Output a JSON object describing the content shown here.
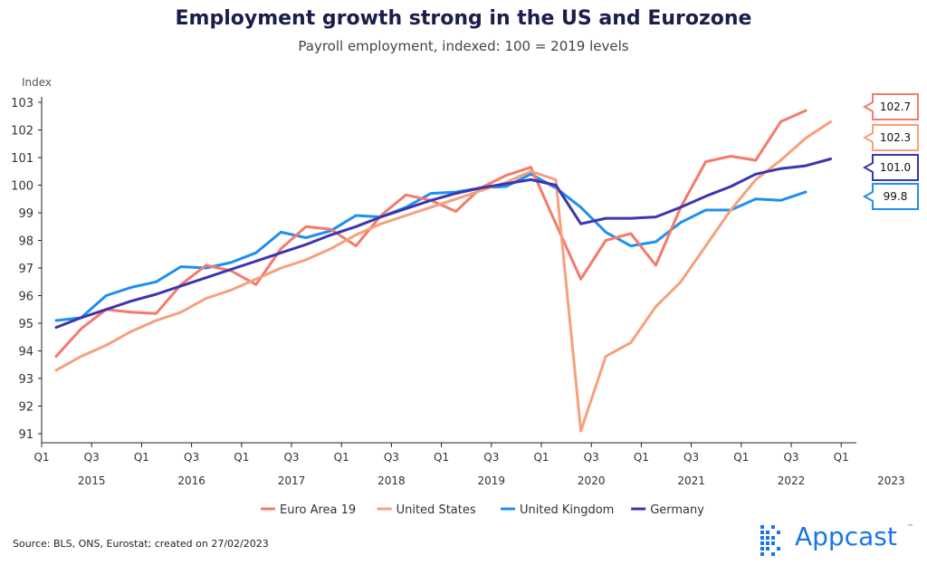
{
  "title": "Employment growth strong in the US and Eurozone",
  "subtitle": "Payroll employment, indexed: 100 = 2019 levels",
  "source": "Source: BLS, ONS, Eurostat; created on 27/02/2023",
  "logo": {
    "text": "Appcast",
    "tm": "™",
    "color": "#1876e8"
  },
  "chart_data": {
    "type": "line",
    "ylabel": "Index",
    "xlabel": "",
    "ylim": [
      91,
      103
    ],
    "yticks": [
      91,
      92,
      93,
      94,
      95,
      96,
      97,
      98,
      99,
      100,
      101,
      102,
      103
    ],
    "x_quarter_labels": [
      "Q1",
      "Q3",
      "Q1",
      "Q3",
      "Q1",
      "Q3",
      "Q1",
      "Q3",
      "Q1",
      "Q3",
      "Q1",
      "Q3",
      "Q1",
      "Q3",
      "Q1",
      "Q3",
      "Q1"
    ],
    "x_year_labels": [
      "2015",
      "2016",
      "2017",
      "2018",
      "2019",
      "2020",
      "2021",
      "2022",
      "2023"
    ],
    "x": [
      "2015Q1",
      "2015Q2",
      "2015Q3",
      "2015Q4",
      "2016Q1",
      "2016Q2",
      "2016Q3",
      "2016Q4",
      "2017Q1",
      "2017Q2",
      "2017Q3",
      "2017Q4",
      "2018Q1",
      "2018Q2",
      "2018Q3",
      "2018Q4",
      "2019Q1",
      "2019Q2",
      "2019Q3",
      "2019Q4",
      "2020Q1",
      "2020Q2",
      "2020Q3",
      "2020Q4",
      "2021Q1",
      "2021Q2",
      "2021Q3",
      "2021Q4",
      "2022Q1",
      "2022Q2",
      "2022Q3",
      "2022Q4",
      "2023Q1"
    ],
    "legend_position": "bottom",
    "grid": false,
    "series": [
      {
        "name": "Euro Area 19",
        "color": "#f47a6b",
        "values": [
          93.8,
          94.8,
          95.5,
          95.4,
          95.35,
          96.4,
          97.1,
          96.9,
          96.4,
          97.7,
          98.5,
          98.4,
          97.8,
          98.9,
          99.65,
          99.45,
          99.05,
          99.9,
          100.35,
          100.65,
          98.6,
          96.6,
          98.0,
          98.25,
          97.1,
          99.2,
          100.85,
          101.05,
          100.9,
          102.3,
          102.7,
          null,
          null
        ],
        "label": "102.7"
      },
      {
        "name": "United States",
        "color": "#f6a07c",
        "values": [
          93.3,
          93.8,
          94.2,
          94.7,
          95.1,
          95.4,
          95.9,
          96.2,
          96.6,
          97.0,
          97.3,
          97.7,
          98.2,
          98.6,
          98.9,
          99.2,
          99.5,
          99.8,
          100.1,
          100.5,
          100.2,
          91.1,
          93.8,
          94.3,
          95.6,
          96.5,
          97.8,
          99.1,
          100.2,
          100.9,
          101.7,
          102.3,
          null
        ],
        "label": "102.3"
      },
      {
        "name": "United Kingdom",
        "color": "#1e90f0",
        "values": [
          95.1,
          95.2,
          96.0,
          96.3,
          96.5,
          97.05,
          97.0,
          97.2,
          97.55,
          98.3,
          98.1,
          98.35,
          98.9,
          98.85,
          99.2,
          99.7,
          99.75,
          99.9,
          99.95,
          100.4,
          99.9,
          99.2,
          98.3,
          97.8,
          97.95,
          98.65,
          99.1,
          99.1,
          99.5,
          99.45,
          99.75,
          null,
          null
        ],
        "label": "99.8"
      },
      {
        "name": "Germany",
        "color": "#3b35b0",
        "values": [
          94.85,
          95.2,
          95.5,
          95.8,
          96.05,
          96.35,
          96.65,
          96.95,
          97.25,
          97.55,
          97.85,
          98.2,
          98.5,
          98.85,
          99.15,
          99.45,
          99.7,
          99.9,
          100.05,
          100.2,
          100.0,
          98.6,
          98.8,
          98.8,
          98.85,
          99.2,
          99.6,
          99.95,
          100.4,
          100.6,
          100.7,
          100.95,
          null
        ],
        "label": "101.0"
      }
    ]
  }
}
